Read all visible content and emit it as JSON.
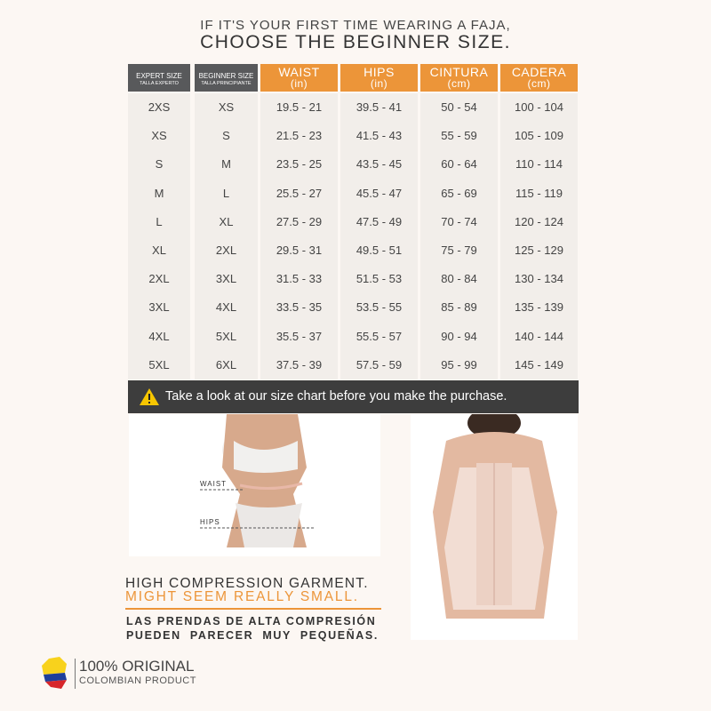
{
  "heading": {
    "line1": "IF IT'S YOUR FIRST TIME WEARING A FAJA,",
    "line2": "CHOOSE THE BEGINNER SIZE."
  },
  "table": {
    "headers": [
      {
        "main": "EXPERT SIZE",
        "sub": "TALLA EXPERTO",
        "style": "dark"
      },
      {
        "main": "BEGINNER SIZE",
        "sub": "TALLA PRINCIPIANTE",
        "style": "dark"
      },
      {
        "main": "WAIST",
        "sub": "(in)",
        "style": "orange"
      },
      {
        "main": "HIPS",
        "sub": "(in)",
        "style": "orange"
      },
      {
        "main": "CINTURA",
        "sub": "(cm)",
        "style": "orange"
      },
      {
        "main": "CADERA",
        "sub": "(cm)",
        "style": "orange"
      }
    ],
    "rows": [
      [
        "2XS",
        "XS",
        "19.5 - 21",
        "39.5 - 41",
        "50 - 54",
        "100 - 104"
      ],
      [
        "XS",
        "S",
        "21.5 - 23",
        "41.5 - 43",
        "55 - 59",
        "105 - 109"
      ],
      [
        "S",
        "M",
        "23.5 - 25",
        "43.5 - 45",
        "60 - 64",
        "110 - 114"
      ],
      [
        "M",
        "L",
        "25.5 - 27",
        "45.5 - 47",
        "65 - 69",
        "115 - 119"
      ],
      [
        "L",
        "XL",
        "27.5 - 29",
        "47.5 - 49",
        "70 - 74",
        "120 - 124"
      ],
      [
        "XL",
        "2XL",
        "29.5 - 31",
        "49.5 - 51",
        "75 - 79",
        "125 - 129"
      ],
      [
        "2XL",
        "3XL",
        "31.5 - 33",
        "51.5 - 53",
        "80 - 84",
        "130 - 134"
      ],
      [
        "3XL",
        "4XL",
        "33.5 - 35",
        "53.5 - 55",
        "85 - 89",
        "135 - 139"
      ],
      [
        "4XL",
        "5XL",
        "35.5 - 37",
        "55.5 - 57",
        "90 - 94",
        "140 - 144"
      ],
      [
        "5XL",
        "6XL",
        "37.5 - 39",
        "57.5 - 59",
        "95 - 99",
        "145 - 149"
      ]
    ]
  },
  "warning": {
    "icon": "warning-triangle-icon",
    "text": "Take a look at our size chart before you make the purchase."
  },
  "photo_labels": {
    "waist": "WAIST",
    "hips": "HIPS"
  },
  "notice": {
    "line1": "HIGH COMPRESSION GARMENT.",
    "line2": "MIGHT SEEM REALLY SMALL.",
    "es1": "LAS PRENDAS DE ALTA COMPRESIÓN",
    "es2": "PUEDEN  PARECER  MUY  PEQUEÑAS."
  },
  "origin": {
    "line1": "100% ORIGINAL",
    "line2": "COLOMBIAN PRODUCT",
    "flag_icon": "colombia-flag-icon"
  },
  "colors": {
    "orange": "#ec9539",
    "dark": "#58595b",
    "warning_bar": "#3d3d3d"
  }
}
